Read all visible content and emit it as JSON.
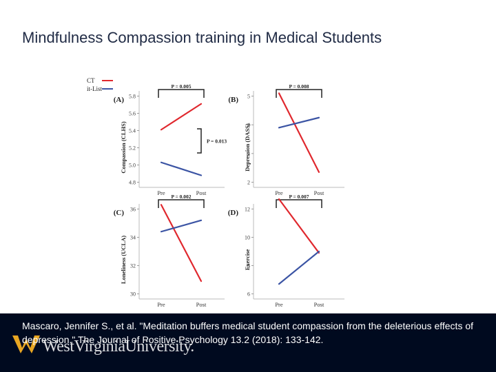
{
  "slide": {
    "title": "Mindfulness Compassion training in Medical Students",
    "citation": "Mascaro, Jennifer S., et al. \"Meditation buffers medical student compassion from the deleterious effects of depression.\" The Journal of Positive Psychology 13.2 (2018): 133-142.",
    "logo_text": "WestVirginiaUniversity."
  },
  "colors": {
    "ct": "#e0282e",
    "wl": "#3b54a4",
    "footer": "#000a1f",
    "title": "#1f2a44"
  },
  "chart_data": [
    {
      "type": "line",
      "panel_label": "(A)",
      "ylabel": "Compassion (CLHS)",
      "x": [
        "Pre",
        "Post"
      ],
      "ylim": [
        4.8,
        5.8
      ],
      "yticks": [
        "4.8",
        "5.0",
        "5.2",
        "5.4",
        "5.6",
        "5.8"
      ],
      "series": [
        {
          "name": "CT",
          "values": [
            5.41,
            5.71
          ]
        },
        {
          "name": "it-List",
          "values": [
            5.03,
            4.88
          ]
        }
      ],
      "annotations": [
        "P = 0.005",
        "P = 0.013"
      ]
    },
    {
      "type": "line",
      "panel_label": "(B)",
      "ylabel": "Depression (DASS)",
      "x": [
        "Pre",
        "Post"
      ],
      "ylim": [
        2,
        5
      ],
      "yticks": [
        "2",
        "3",
        "4",
        "5"
      ],
      "series": [
        {
          "name": "CT",
          "values": [
            5.1,
            2.35
          ]
        },
        {
          "name": "it-List",
          "values": [
            3.9,
            4.25
          ]
        }
      ],
      "annotations": [
        "P = 0.008"
      ]
    },
    {
      "type": "line",
      "panel_label": "(C)",
      "ylabel": "Loneliness (UCLA)",
      "x": [
        "Pre",
        "Post"
      ],
      "ylim": [
        30,
        36
      ],
      "yticks": [
        "30",
        "32",
        "34",
        "36"
      ],
      "series": [
        {
          "name": "CT",
          "values": [
            36.3,
            30.9
          ]
        },
        {
          "name": "it-List",
          "values": [
            34.4,
            35.2
          ]
        }
      ],
      "annotations": [
        "P = 0.002"
      ]
    },
    {
      "type": "line",
      "panel_label": "(D)",
      "ylabel": "Exercise",
      "x": [
        "Pre",
        "Post"
      ],
      "ylim": [
        6,
        12
      ],
      "yticks": [
        "6",
        "8",
        "10",
        "12"
      ],
      "series": [
        {
          "name": "CT",
          "values": [
            12.7,
            8.9
          ]
        },
        {
          "name": "it-List",
          "values": [
            6.7,
            9.0
          ]
        }
      ],
      "annotations": [
        "P = 0.007"
      ]
    }
  ],
  "legend": {
    "items": [
      "CT",
      "it-List"
    ],
    "placement": "top-left"
  }
}
